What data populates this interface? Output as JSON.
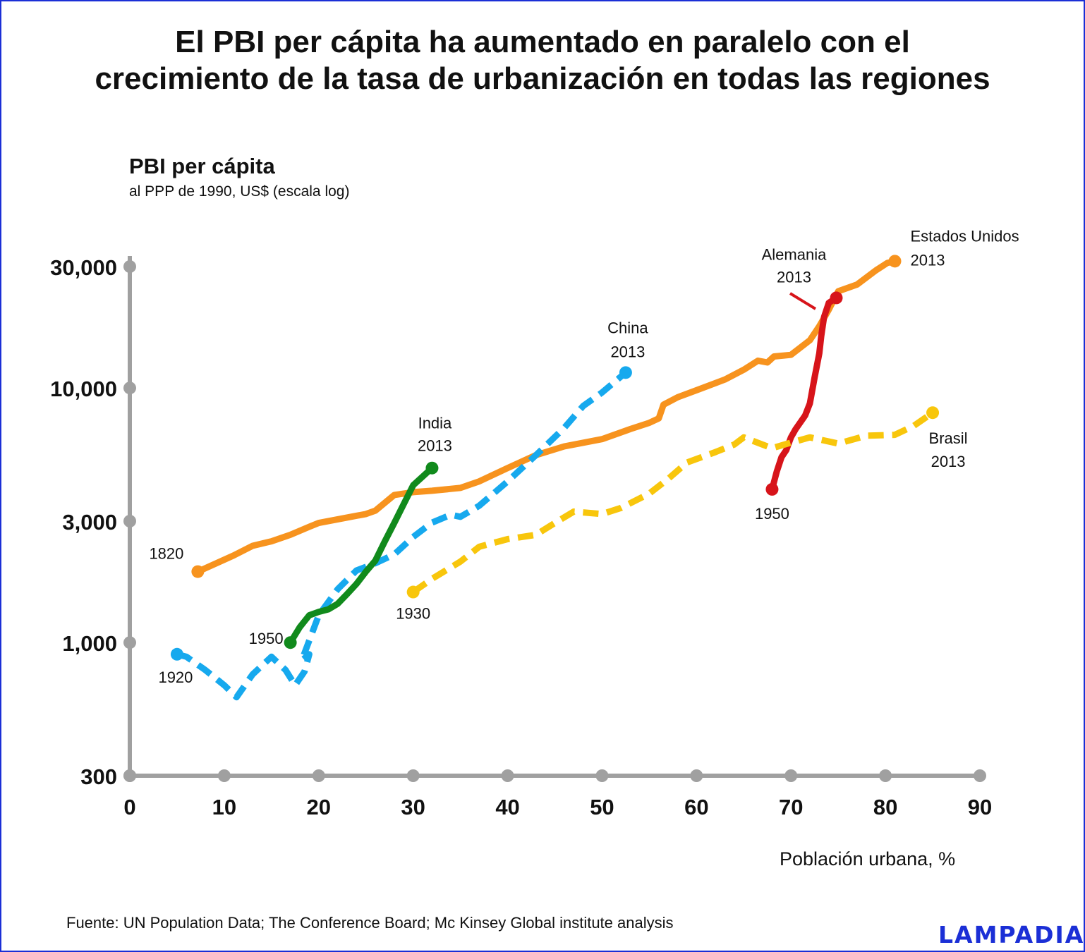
{
  "title_line1": "El PBI per cápita ha aumentado en paralelo con el",
  "title_line2": "crecimiento de la tasa de urbanización en todas las regiones",
  "ylabel": "PBI per cápita",
  "ylabel_sub": "al PPP de 1990, US$ (escala log)",
  "xlabel": "Población urbana, %",
  "source": "Fuente: UN Population Data; The Conference Board; Mc Kinsey Global  institute analysis",
  "brand": "LAMPADIA",
  "colors": {
    "axis": "#a0a0a0",
    "border": "#1b2fd6"
  },
  "chart_data": {
    "type": "line",
    "y_scale": "log",
    "xlim": [
      0,
      90
    ],
    "ylim": [
      300,
      33000
    ],
    "x_ticks": [
      0,
      10,
      20,
      30,
      40,
      50,
      60,
      70,
      80,
      90
    ],
    "x_tick_labels": [
      "0",
      "10",
      "20",
      "30",
      "40",
      "50",
      "60",
      "70",
      "80",
      "90"
    ],
    "y_ticks": [
      300,
      1000,
      3000,
      10000,
      30000
    ],
    "y_tick_labels": [
      "300",
      "1,000",
      "3,000",
      "10,000",
      "30,000"
    ],
    "series": [
      {
        "name": "Estados Unidos",
        "color": "#f7931e",
        "style": "solid",
        "start_label": "1820",
        "end_label_lines": [
          "Estados Unidos",
          "2013"
        ],
        "points": [
          [
            7.2,
            1900
          ],
          [
            11,
            2200
          ],
          [
            13,
            2400
          ],
          [
            15,
            2500
          ],
          [
            17,
            2650
          ],
          [
            19,
            2850
          ],
          [
            20,
            2950
          ],
          [
            23,
            3100
          ],
          [
            25,
            3200
          ],
          [
            26,
            3300
          ],
          [
            28,
            3800
          ],
          [
            30,
            3900
          ],
          [
            32,
            3950
          ],
          [
            35,
            4050
          ],
          [
            37,
            4300
          ],
          [
            40,
            4850
          ],
          [
            43,
            5450
          ],
          [
            46,
            5900
          ],
          [
            50,
            6300
          ],
          [
            53,
            6900
          ],
          [
            55,
            7300
          ],
          [
            56,
            7600
          ],
          [
            56.5,
            8600
          ],
          [
            58,
            9200
          ],
          [
            60,
            9800
          ],
          [
            63,
            10800
          ],
          [
            65,
            11800
          ],
          [
            66.5,
            12800
          ],
          [
            67.5,
            12600
          ],
          [
            68.2,
            13300
          ],
          [
            70,
            13500
          ],
          [
            72,
            15400
          ],
          [
            73,
            17500
          ],
          [
            74,
            20300
          ],
          [
            75,
            24000
          ],
          [
            77,
            25500
          ],
          [
            79,
            29000
          ],
          [
            80.2,
            31000
          ],
          [
            81,
            31500
          ]
        ]
      },
      {
        "name": "Alemania",
        "color": "#d7141a",
        "style": "solid",
        "start_label": "1950",
        "end_label_lines": [
          "Alemania",
          "2013"
        ],
        "points": [
          [
            68,
            4000
          ],
          [
            68.5,
            4700
          ],
          [
            69,
            5350
          ],
          [
            69.5,
            5700
          ],
          [
            70,
            6400
          ],
          [
            70.5,
            6900
          ],
          [
            71.5,
            7800
          ],
          [
            72,
            8700
          ],
          [
            72.5,
            11000
          ],
          [
            73,
            13700
          ],
          [
            73.2,
            16000
          ],
          [
            73.5,
            19000
          ],
          [
            74,
            21600
          ],
          [
            74.8,
            22600
          ]
        ]
      },
      {
        "name": "China",
        "color": "#16a9ee",
        "style": "dashed",
        "start_label": "1920",
        "end_label_lines": [
          "China",
          "2013"
        ],
        "points": [
          [
            5,
            900
          ],
          [
            6,
            880
          ],
          [
            8,
            780
          ],
          [
            10,
            680
          ],
          [
            11.3,
            610
          ],
          [
            13,
            750
          ],
          [
            15,
            880
          ],
          [
            16.5,
            780
          ],
          [
            17.5,
            680
          ],
          [
            18.5,
            770
          ],
          [
            19,
            900
          ],
          [
            18.2,
            850
          ],
          [
            20,
            1280
          ],
          [
            22,
            1620
          ],
          [
            24,
            1920
          ],
          [
            26,
            2050
          ],
          [
            28,
            2220
          ],
          [
            30,
            2600
          ],
          [
            32,
            2960
          ],
          [
            34,
            3180
          ],
          [
            35,
            3120
          ],
          [
            37,
            3450
          ],
          [
            40,
            4300
          ],
          [
            43,
            5450
          ],
          [
            46,
            6980
          ],
          [
            48,
            8500
          ],
          [
            50,
            9600
          ],
          [
            52.5,
            11500
          ]
        ]
      },
      {
        "name": "India",
        "color": "#118a1c",
        "style": "solid",
        "start_label": "1950",
        "end_label_lines": [
          "India",
          "2013"
        ],
        "points": [
          [
            17,
            1000
          ],
          [
            18,
            1150
          ],
          [
            19,
            1280
          ],
          [
            20,
            1320
          ],
          [
            21,
            1350
          ],
          [
            22,
            1420
          ],
          [
            23,
            1550
          ],
          [
            24,
            1700
          ],
          [
            25,
            1900
          ],
          [
            26,
            2100
          ],
          [
            27,
            2500
          ],
          [
            28,
            2950
          ],
          [
            29,
            3500
          ],
          [
            30,
            4150
          ],
          [
            32,
            4850
          ]
        ]
      },
      {
        "name": "Brasil",
        "color": "#f8c60c",
        "style": "dashed",
        "start_label": "1930",
        "end_label_lines": [
          "Brasil",
          "2013"
        ],
        "points": [
          [
            30,
            1580
          ],
          [
            32,
            1780
          ],
          [
            35,
            2080
          ],
          [
            37,
            2380
          ],
          [
            40,
            2550
          ],
          [
            43,
            2650
          ],
          [
            45,
            2950
          ],
          [
            47,
            3270
          ],
          [
            50,
            3200
          ],
          [
            52,
            3380
          ],
          [
            55,
            3850
          ],
          [
            57,
            4400
          ],
          [
            59,
            5100
          ],
          [
            62,
            5600
          ],
          [
            64,
            6000
          ],
          [
            65,
            6400
          ],
          [
            68,
            5800
          ],
          [
            70,
            6100
          ],
          [
            72,
            6400
          ],
          [
            75,
            6050
          ],
          [
            78,
            6500
          ],
          [
            81,
            6550
          ],
          [
            83,
            7100
          ],
          [
            85,
            8000
          ]
        ]
      }
    ]
  }
}
